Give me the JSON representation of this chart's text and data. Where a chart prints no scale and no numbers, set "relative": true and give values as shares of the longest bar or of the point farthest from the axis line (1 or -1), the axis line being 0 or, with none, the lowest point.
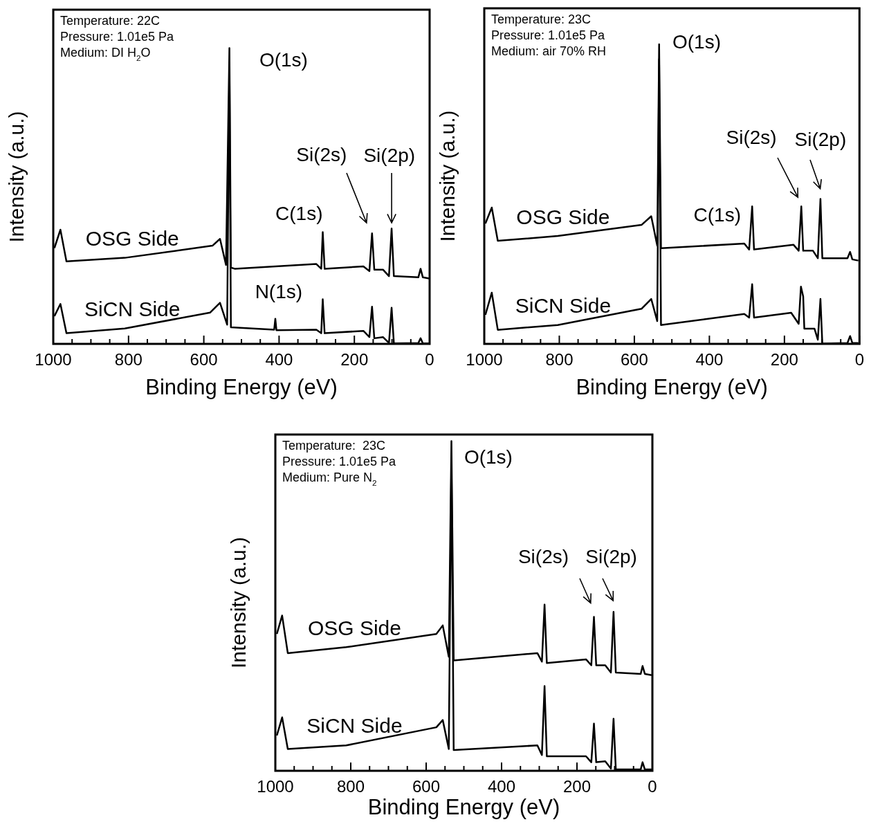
{
  "chart_data": [
    {
      "type": "line",
      "xlabel": "Binding Energy (eV)",
      "ylabel": "Intensity (a.u.)",
      "relative": true,
      "xlim": [
        1000,
        0
      ],
      "xticks": [
        1000,
        {
          "value": 950,
          "label": null
        },
        {
          "value": 900,
          "label": null
        },
        {
          "value": 850,
          "label": null
        },
        800,
        {
          "value": 750,
          "label": null
        },
        {
          "value": 700,
          "label": null
        },
        {
          "value": 650,
          "label": null
        },
        600,
        {
          "value": 550,
          "label": null
        },
        {
          "value": 500,
          "label": null
        },
        {
          "value": 450,
          "label": null
        },
        400,
        {
          "value": 350,
          "label": null
        },
        {
          "value": 300,
          "label": null
        },
        {
          "value": 250,
          "label": null
        },
        200,
        {
          "value": 150,
          "label": null
        },
        {
          "value": 100,
          "label": null
        },
        {
          "value": 50,
          "label": null
        },
        0
      ],
      "legend": false,
      "grid": false,
      "marker": "none",
      "line_style": "solid",
      "annotations": [
        "Temperature: 22C",
        "Pressure: 1.01e5 Pa",
        "Medium: DI H$_{2}$O",
        "O(1s)",
        "C(1s)",
        "N(1s)",
        "Si(2s)",
        "Si(2p)"
      ],
      "series": [
        {
          "name": "OSG Side",
          "color": "#000000",
          "x": [
            997,
            981,
            965,
            810,
            577,
            557,
            541,
            532,
            528,
            518,
            301,
            288,
            284,
            279,
            176,
            160,
            153,
            147,
            124,
            108,
            101,
            95,
            30,
            24,
            18,
            1
          ],
          "values": [
            0.324,
            0.386,
            0.279,
            0.291,
            0.332,
            0.355,
            0.267,
            1.0,
            0.258,
            0.254,
            0.27,
            0.254,
            0.378,
            0.254,
            0.262,
            0.246,
            0.374,
            0.251,
            0.251,
            0.229,
            0.39,
            0.229,
            0.225,
            0.254,
            0.225,
            0.221
          ]
        },
        {
          "name": "SiCN Side",
          "color": "#000000",
          "x": [
            997,
            981,
            965,
            810,
            583,
            557,
            538,
            532,
            528,
            413,
            410,
            407,
            301,
            288,
            284,
            279,
            176,
            160,
            153,
            147,
            124,
            108,
            101,
            95,
            30,
            24,
            18,
            1
          ],
          "values": [
            0.094,
            0.135,
            0.036,
            0.052,
            0.106,
            0.139,
            0.065,
            0.95,
            0.056,
            0.048,
            0.085,
            0.046,
            0.048,
            0.036,
            0.151,
            0.036,
            0.044,
            0.023,
            0.126,
            0.019,
            0.023,
            0.003,
            0.122,
            0.002,
            0.003,
            0.019,
            0.002,
            0.002
          ]
        }
      ]
    },
    {
      "type": "line",
      "xlabel": "Binding Energy (eV)",
      "ylabel": "Intensity (a.u.)",
      "relative": true,
      "xlim": [
        1000,
        0
      ],
      "xticks": [
        1000,
        {
          "value": 950,
          "label": null
        },
        {
          "value": 900,
          "label": null
        },
        {
          "value": 850,
          "label": null
        },
        800,
        {
          "value": 750,
          "label": null
        },
        {
          "value": 700,
          "label": null
        },
        {
          "value": 650,
          "label": null
        },
        600,
        {
          "value": 550,
          "label": null
        },
        {
          "value": 500,
          "label": null
        },
        {
          "value": 450,
          "label": null
        },
        400,
        {
          "value": 350,
          "label": null
        },
        {
          "value": 300,
          "label": null
        },
        {
          "value": 250,
          "label": null
        },
        200,
        {
          "value": 150,
          "label": null
        },
        {
          "value": 100,
          "label": null
        },
        {
          "value": 50,
          "label": null
        },
        0
      ],
      "legend": false,
      "grid": false,
      "marker": "none",
      "line_style": "solid",
      "annotations": [
        "Temperature: 23C",
        "Pressure: 1.01e5 Pa",
        "Medium: air 70% RH",
        "O(1s)",
        "C(1s)",
        "Si(2s)",
        "Si(2p)"
      ],
      "series": [
        {
          "name": "OSG Side",
          "color": "#000000",
          "x": [
            997,
            980,
            964,
            804,
            581,
            555,
            539,
            534,
            529,
            307,
            294,
            286,
            281,
            176,
            162,
            155,
            150,
            124,
            111,
            104,
            99,
            32,
            25,
            19,
            3
          ],
          "values": [
            0.402,
            0.455,
            0.344,
            0.36,
            0.397,
            0.426,
            0.328,
            1.0,
            0.319,
            0.335,
            0.315,
            0.459,
            0.315,
            0.331,
            0.311,
            0.459,
            0.311,
            0.311,
            0.286,
            0.484,
            0.286,
            0.286,
            0.307,
            0.282,
            0.278
          ]
        },
        {
          "name": "SiCN Side",
          "color": "#000000",
          "x": [
            997,
            980,
            964,
            804,
            581,
            555,
            539,
            534,
            529,
            307,
            294,
            286,
            281,
            182,
            162,
            156,
            150,
            147,
            120,
            111,
            104,
            99,
            32,
            25,
            19,
            3
          ],
          "values": [
            0.097,
            0.171,
            0.047,
            0.063,
            0.117,
            0.15,
            0.076,
            0.95,
            0.063,
            0.1,
            0.088,
            0.199,
            0.088,
            0.104,
            0.067,
            0.191,
            0.158,
            0.051,
            0.051,
            0.014,
            0.15,
            0.001,
            0.003,
            0.026,
            0.003,
            0.003
          ]
        }
      ]
    },
    {
      "type": "line",
      "xlabel": "Binding Energy (eV)",
      "ylabel": "Intensity (a.u.)",
      "relative": true,
      "xlim": [
        1000,
        0
      ],
      "xticks": [
        1000,
        {
          "value": 950,
          "label": null
        },
        {
          "value": 900,
          "label": null
        },
        {
          "value": 850,
          "label": null
        },
        800,
        {
          "value": 750,
          "label": null
        },
        {
          "value": 700,
          "label": null
        },
        {
          "value": 650,
          "label": null
        },
        600,
        {
          "value": 550,
          "label": null
        },
        {
          "value": 500,
          "label": null
        },
        {
          "value": 450,
          "label": null
        },
        400,
        {
          "value": 350,
          "label": null
        },
        {
          "value": 300,
          "label": null
        },
        {
          "value": 250,
          "label": null
        },
        200,
        {
          "value": 150,
          "label": null
        },
        {
          "value": 100,
          "label": null
        },
        {
          "value": 50,
          "label": null
        },
        0
      ],
      "legend": false,
      "grid": false,
      "marker": "none",
      "line_style": "solid",
      "annotations": [
        "Temperature:  23C",
        "Pressure: 1.01e5 Pa",
        "Medium: Pure N$_{2}$",
        "O(1s)",
        "Si(2s)",
        "Si(2p)"
      ],
      "series": [
        {
          "name": "OSG Side",
          "color": "#000000",
          "x": [
            996,
            982,
            967,
            812,
            573,
            556,
            540,
            533,
            527,
            305,
            293,
            286,
            280,
            176,
            162,
            155,
            149,
            125,
            110,
            103,
            97,
            31,
            26,
            20,
            2
          ],
          "values": [
            0.415,
            0.471,
            0.357,
            0.375,
            0.415,
            0.441,
            0.346,
            1.0,
            0.335,
            0.357,
            0.331,
            0.504,
            0.327,
            0.338,
            0.32,
            0.467,
            0.32,
            0.32,
            0.298,
            0.482,
            0.298,
            0.294,
            0.318,
            0.294,
            0.29
          ]
        },
        {
          "name": "SiCN Side",
          "color": "#000000",
          "x": [
            996,
            982,
            967,
            812,
            573,
            556,
            540,
            533,
            527,
            305,
            293,
            286,
            280,
            176,
            162,
            155,
            149,
            125,
            110,
            103,
            97,
            31,
            26,
            20,
            2
          ],
          "values": [
            0.107,
            0.162,
            0.066,
            0.077,
            0.132,
            0.154,
            0.066,
            0.95,
            0.063,
            0.077,
            0.048,
            0.257,
            0.044,
            0.044,
            0.026,
            0.143,
            0.026,
            0.029,
            0.007,
            0.158,
            0.004,
            0.004,
            0.026,
            0.004,
            0.004
          ]
        }
      ]
    }
  ]
}
